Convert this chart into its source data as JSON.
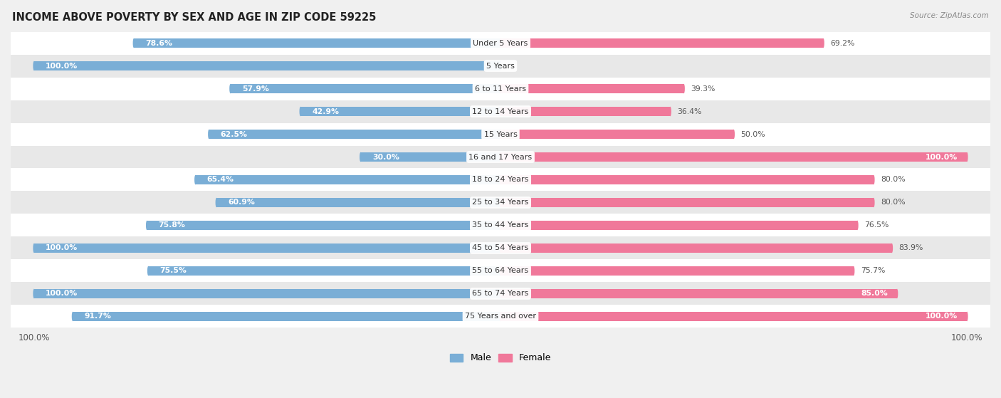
{
  "title": "INCOME ABOVE POVERTY BY SEX AND AGE IN ZIP CODE 59225",
  "source": "Source: ZipAtlas.com",
  "categories": [
    "Under 5 Years",
    "5 Years",
    "6 to 11 Years",
    "12 to 14 Years",
    "15 Years",
    "16 and 17 Years",
    "18 to 24 Years",
    "25 to 34 Years",
    "35 to 44 Years",
    "45 to 54 Years",
    "55 to 64 Years",
    "65 to 74 Years",
    "75 Years and over"
  ],
  "male_values": [
    78.6,
    100.0,
    57.9,
    42.9,
    62.5,
    30.0,
    65.4,
    60.9,
    75.8,
    100.0,
    75.5,
    100.0,
    91.7
  ],
  "female_values": [
    69.2,
    0.0,
    39.3,
    36.4,
    50.0,
    100.0,
    80.0,
    80.0,
    76.5,
    83.9,
    75.7,
    85.0,
    100.0
  ],
  "male_color": "#7aaed6",
  "female_color": "#f0789a",
  "bar_height": 0.42,
  "bg_color": "#f0f0f0",
  "row_colors": [
    "#ffffff",
    "#e8e8e8"
  ],
  "title_fontsize": 10.5,
  "label_fontsize": 8.0,
  "value_fontsize": 7.8,
  "xlim_left": -105,
  "xlim_right": 105,
  "inside_threshold": 15
}
